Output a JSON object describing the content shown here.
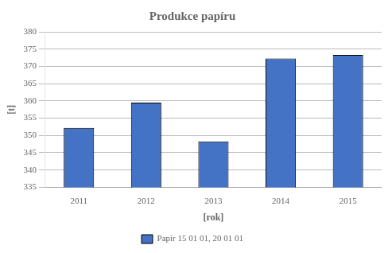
{
  "chart_data": {
    "type": "bar",
    "title": "Produkce papíru",
    "categories": [
      "2011",
      "2012",
      "2013",
      "2014",
      "2015"
    ],
    "series": [
      {
        "name": "Papír 15 01 01, 20 01 01",
        "color": "#4472C4",
        "values": [
          352.2,
          359.5,
          348.3,
          372.3,
          373.3
        ]
      }
    ],
    "xlabel": "[rok]",
    "ylabel": "[t]",
    "ylim": [
      335,
      380
    ],
    "yticks": [
      335,
      340,
      345,
      350,
      355,
      360,
      365,
      370,
      375,
      380
    ],
    "grid": "y",
    "legend": "bottom"
  }
}
